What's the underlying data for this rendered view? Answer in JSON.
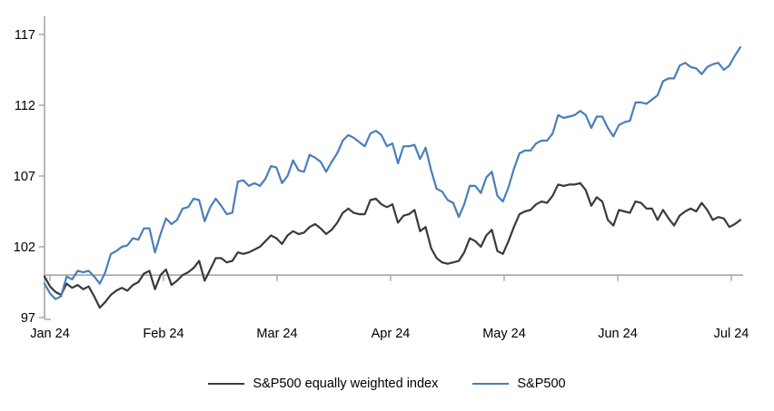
{
  "chart_data": {
    "type": "line",
    "title": "",
    "x_description": "Daily values, January 2024 through early July 2024",
    "x_tick_labels": [
      "Jan 24",
      "Feb 24",
      "Mar 24",
      "Apr 24",
      "May 24",
      "Jun 24",
      "Jul 24"
    ],
    "y_ticks": [
      97,
      102,
      107,
      112,
      117
    ],
    "y_range": [
      97,
      117
    ],
    "baseline_value": 100,
    "grid": "none (single horizontal category axis drawn at value 100 with month tick marks)",
    "legend_position": "bottom-center",
    "axis_color": "#a6a6a6",
    "text_color": "#000000",
    "series": [
      {
        "name": "S&P500 equally weighted index",
        "color": "#3a3a3a",
        "values": [
          99.9,
          99.2,
          98.8,
          98.6,
          99.4,
          99.1,
          99.3,
          99.0,
          99.2,
          98.5,
          97.7,
          98.1,
          98.6,
          98.9,
          99.1,
          98.9,
          99.3,
          99.5,
          100.1,
          100.3,
          99.0,
          100.0,
          100.4,
          99.3,
          99.6,
          100.0,
          100.2,
          100.5,
          101.0,
          99.6,
          100.4,
          101.2,
          101.2,
          100.9,
          101.0,
          101.6,
          101.5,
          101.6,
          101.8,
          102.0,
          102.4,
          102.8,
          102.6,
          102.2,
          102.8,
          103.1,
          102.9,
          103.0,
          103.4,
          103.6,
          103.3,
          102.9,
          103.2,
          103.7,
          104.4,
          104.7,
          104.4,
          104.3,
          104.3,
          105.3,
          105.4,
          105.0,
          104.8,
          105.0,
          103.7,
          104.2,
          104.3,
          104.6,
          103.1,
          103.4,
          101.9,
          101.2,
          100.9,
          100.8,
          100.9,
          101.0,
          101.6,
          102.6,
          102.4,
          102.0,
          102.8,
          103.2,
          101.7,
          101.5,
          102.4,
          103.4,
          104.3,
          104.5,
          104.6,
          105.0,
          105.2,
          105.1,
          105.6,
          106.4,
          106.3,
          106.4,
          106.4,
          106.5,
          106.0,
          104.9,
          105.5,
          105.2,
          103.9,
          103.5,
          104.6,
          104.5,
          104.4,
          105.2,
          105.1,
          104.7,
          104.7,
          103.9,
          104.6,
          104.0,
          103.5,
          104.2,
          104.5,
          104.7,
          104.5,
          105.1,
          104.6,
          103.9,
          104.1,
          104.0,
          103.4,
          103.6,
          103.9
        ]
      },
      {
        "name": "S&P500",
        "color": "#4a7ebb",
        "values": [
          99.4,
          98.7,
          98.3,
          98.5,
          99.9,
          99.7,
          100.3,
          100.2,
          100.3,
          99.9,
          99.4,
          100.2,
          101.5,
          101.7,
          102.0,
          102.1,
          102.6,
          102.5,
          103.3,
          103.3,
          101.6,
          102.9,
          104.0,
          103.6,
          103.9,
          104.7,
          104.8,
          105.4,
          105.3,
          103.8,
          104.8,
          105.4,
          104.9,
          104.3,
          104.4,
          106.6,
          106.7,
          106.3,
          106.5,
          106.3,
          106.8,
          107.7,
          107.6,
          106.5,
          107.0,
          108.1,
          107.4,
          107.3,
          108.5,
          108.3,
          108.0,
          107.3,
          108.0,
          108.6,
          109.5,
          109.9,
          109.7,
          109.4,
          109.1,
          110.0,
          110.2,
          109.9,
          109.1,
          109.3,
          107.9,
          109.1,
          109.1,
          109.2,
          108.2,
          109.0,
          107.4,
          106.1,
          105.9,
          105.3,
          105.1,
          104.1,
          105.0,
          106.3,
          106.3,
          105.8,
          106.9,
          107.3,
          105.6,
          105.2,
          106.2,
          107.5,
          108.6,
          108.8,
          108.8,
          109.3,
          109.5,
          109.5,
          110.0,
          111.3,
          111.1,
          111.2,
          111.3,
          111.6,
          111.3,
          110.4,
          111.2,
          111.2,
          110.4,
          109.8,
          110.6,
          110.8,
          110.9,
          112.2,
          112.2,
          112.1,
          112.4,
          112.7,
          113.7,
          113.9,
          113.9,
          114.8,
          115.0,
          114.7,
          114.6,
          114.2,
          114.7,
          114.9,
          115.0,
          114.5,
          114.8,
          115.5,
          116.1
        ]
      }
    ]
  },
  "legend": {
    "items_note": "line swatches, bottom centered"
  }
}
